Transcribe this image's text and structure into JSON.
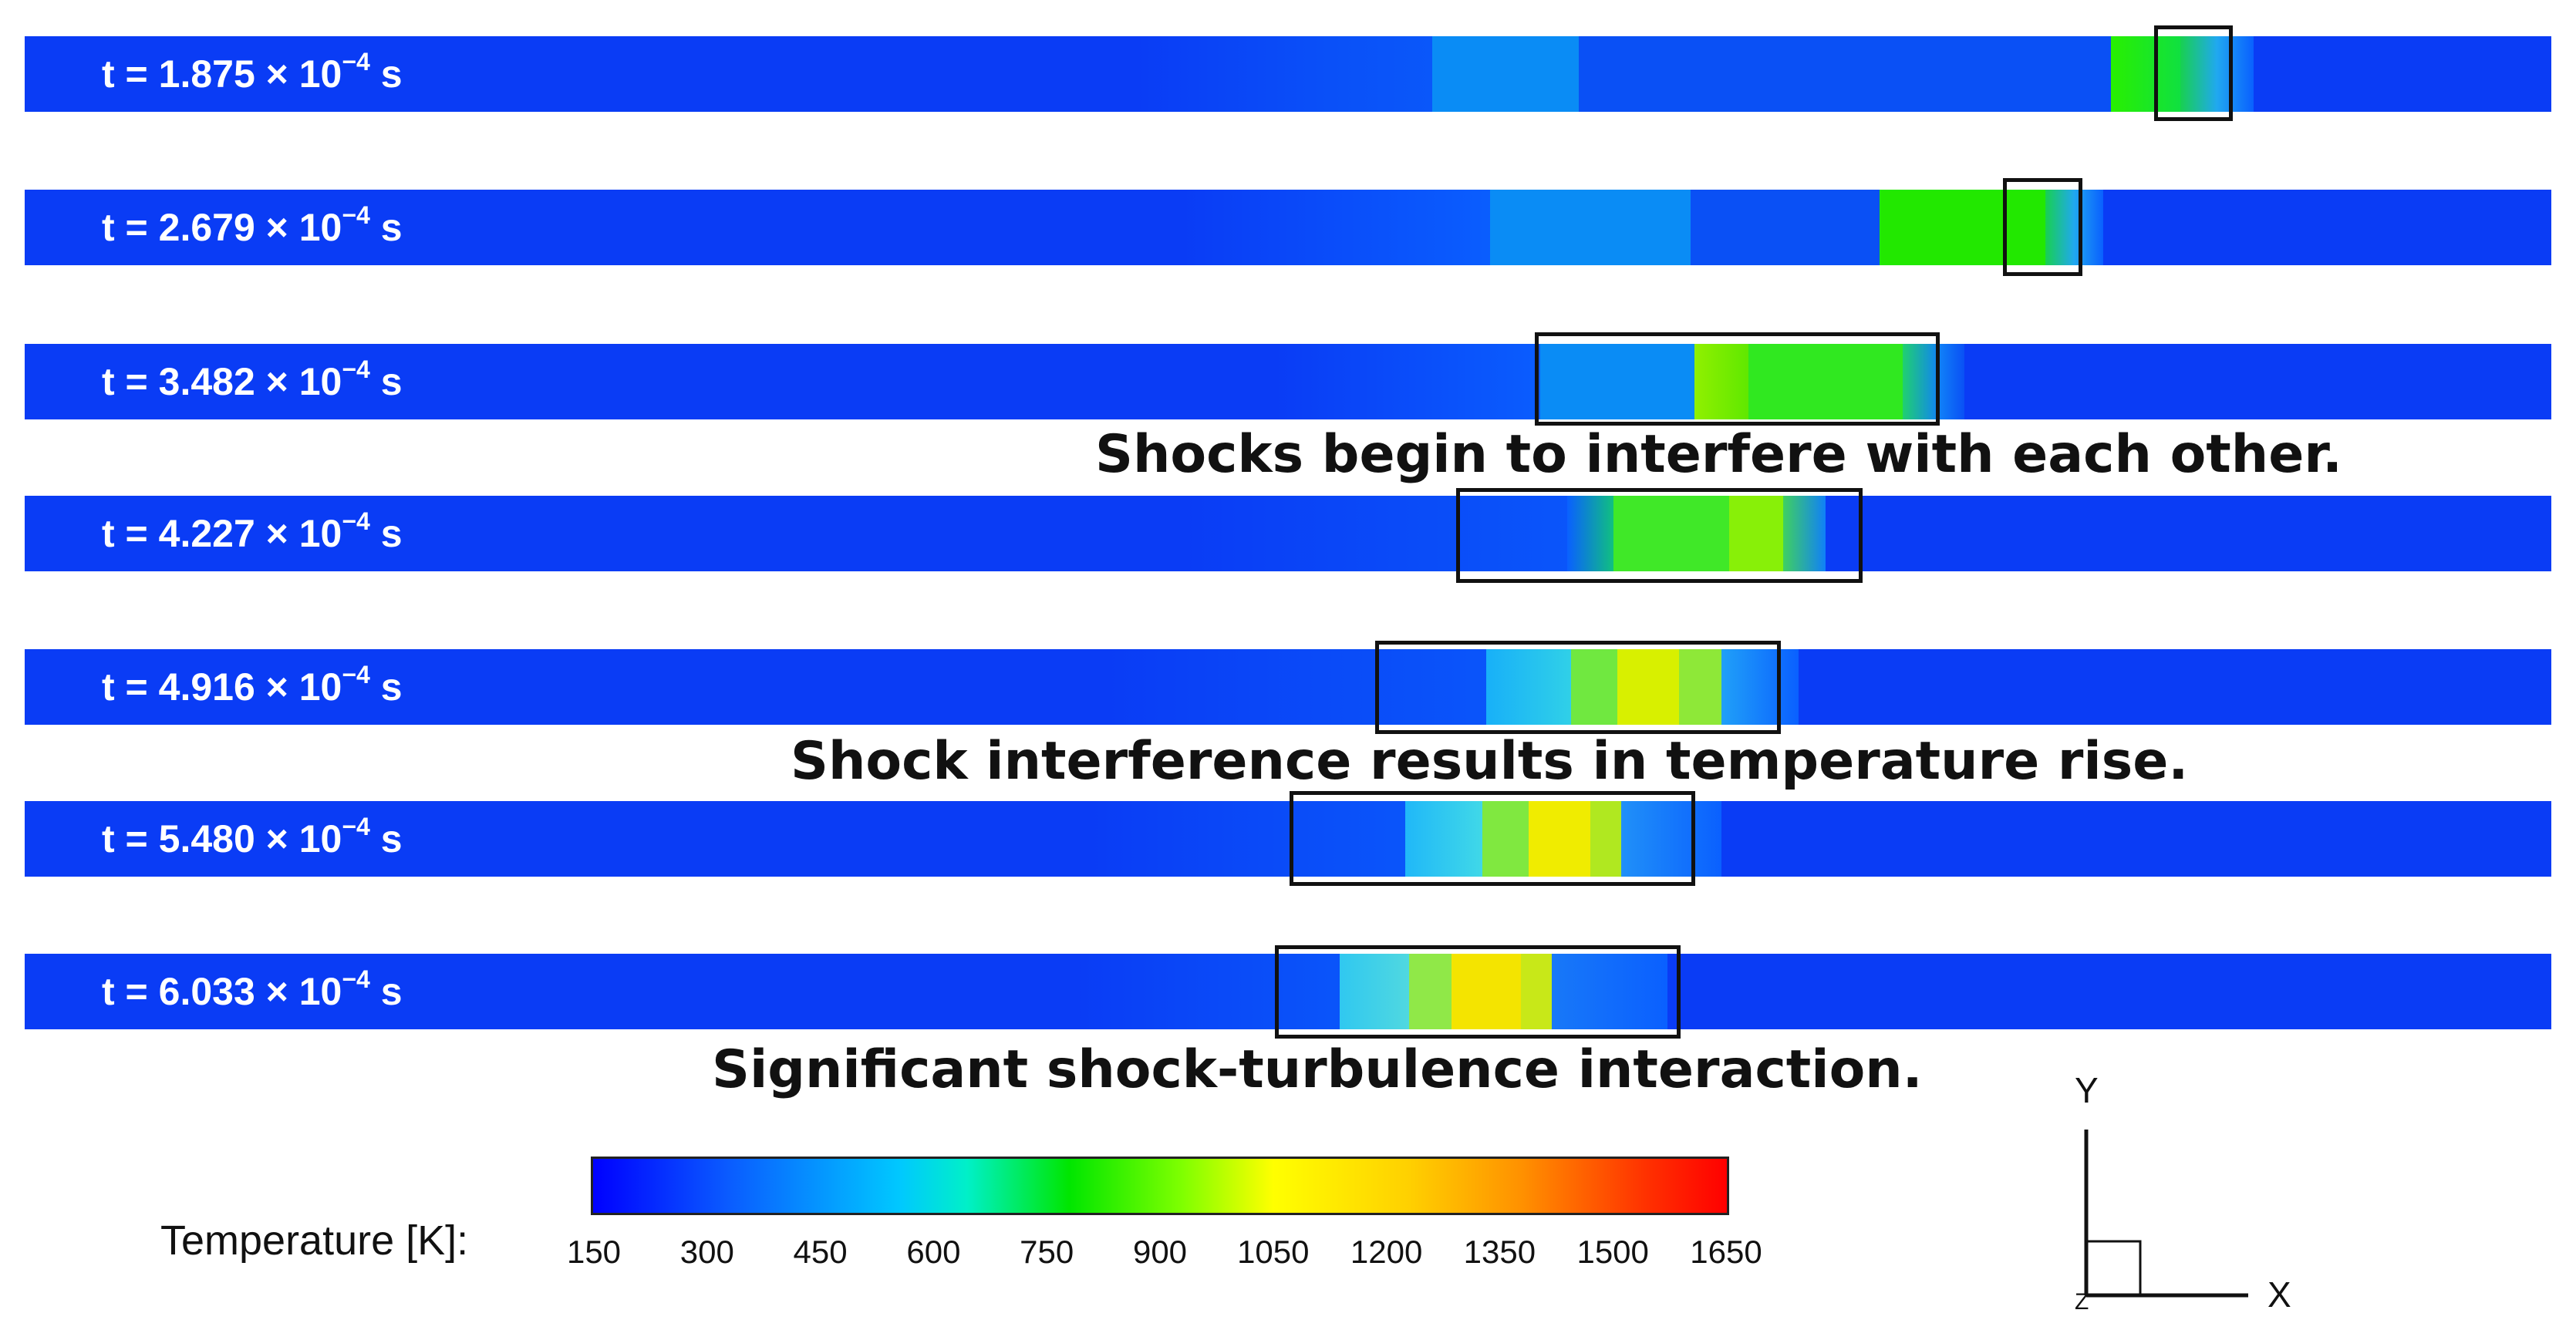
{
  "frames": [
    {
      "time": "t = 1.875 × 10",
      "exp": "−4",
      "unit": " s"
    },
    {
      "time": "t = 2.679 × 10",
      "exp": "−4",
      "unit": " s"
    },
    {
      "time": "t = 3.482 × 10",
      "exp": "−4",
      "unit": " s"
    },
    {
      "time": "t = 4.227 × 10",
      "exp": "−4",
      "unit": " s"
    },
    {
      "time": "t = 4.916 × 10",
      "exp": "−4",
      "unit": " s"
    },
    {
      "time": "t = 5.480 × 10",
      "exp": "−4",
      "unit": " s"
    },
    {
      "time": "t = 6.033 × 10",
      "exp": "−4",
      "unit": " s"
    }
  ],
  "annotations": {
    "interfere": "Shocks begin to interfere with each other.",
    "temp_rise": "Shock interference results in temperature rise.",
    "turbulence": "Significant shock-turbulence interaction."
  },
  "colorbar": {
    "label": "Temperature [K]:",
    "ticks": [
      "150",
      "300",
      "450",
      "600",
      "750",
      "900",
      "1050",
      "1200",
      "1350",
      "1500",
      "1650"
    ],
    "min": 150,
    "max": 1650,
    "colors": [
      "#0000ff",
      "#00c8ff",
      "#00e600",
      "#ffff00",
      "#ff9000",
      "#ff0000"
    ]
  },
  "axes": {
    "y": "Y",
    "x": "X",
    "z": "Z"
  }
}
